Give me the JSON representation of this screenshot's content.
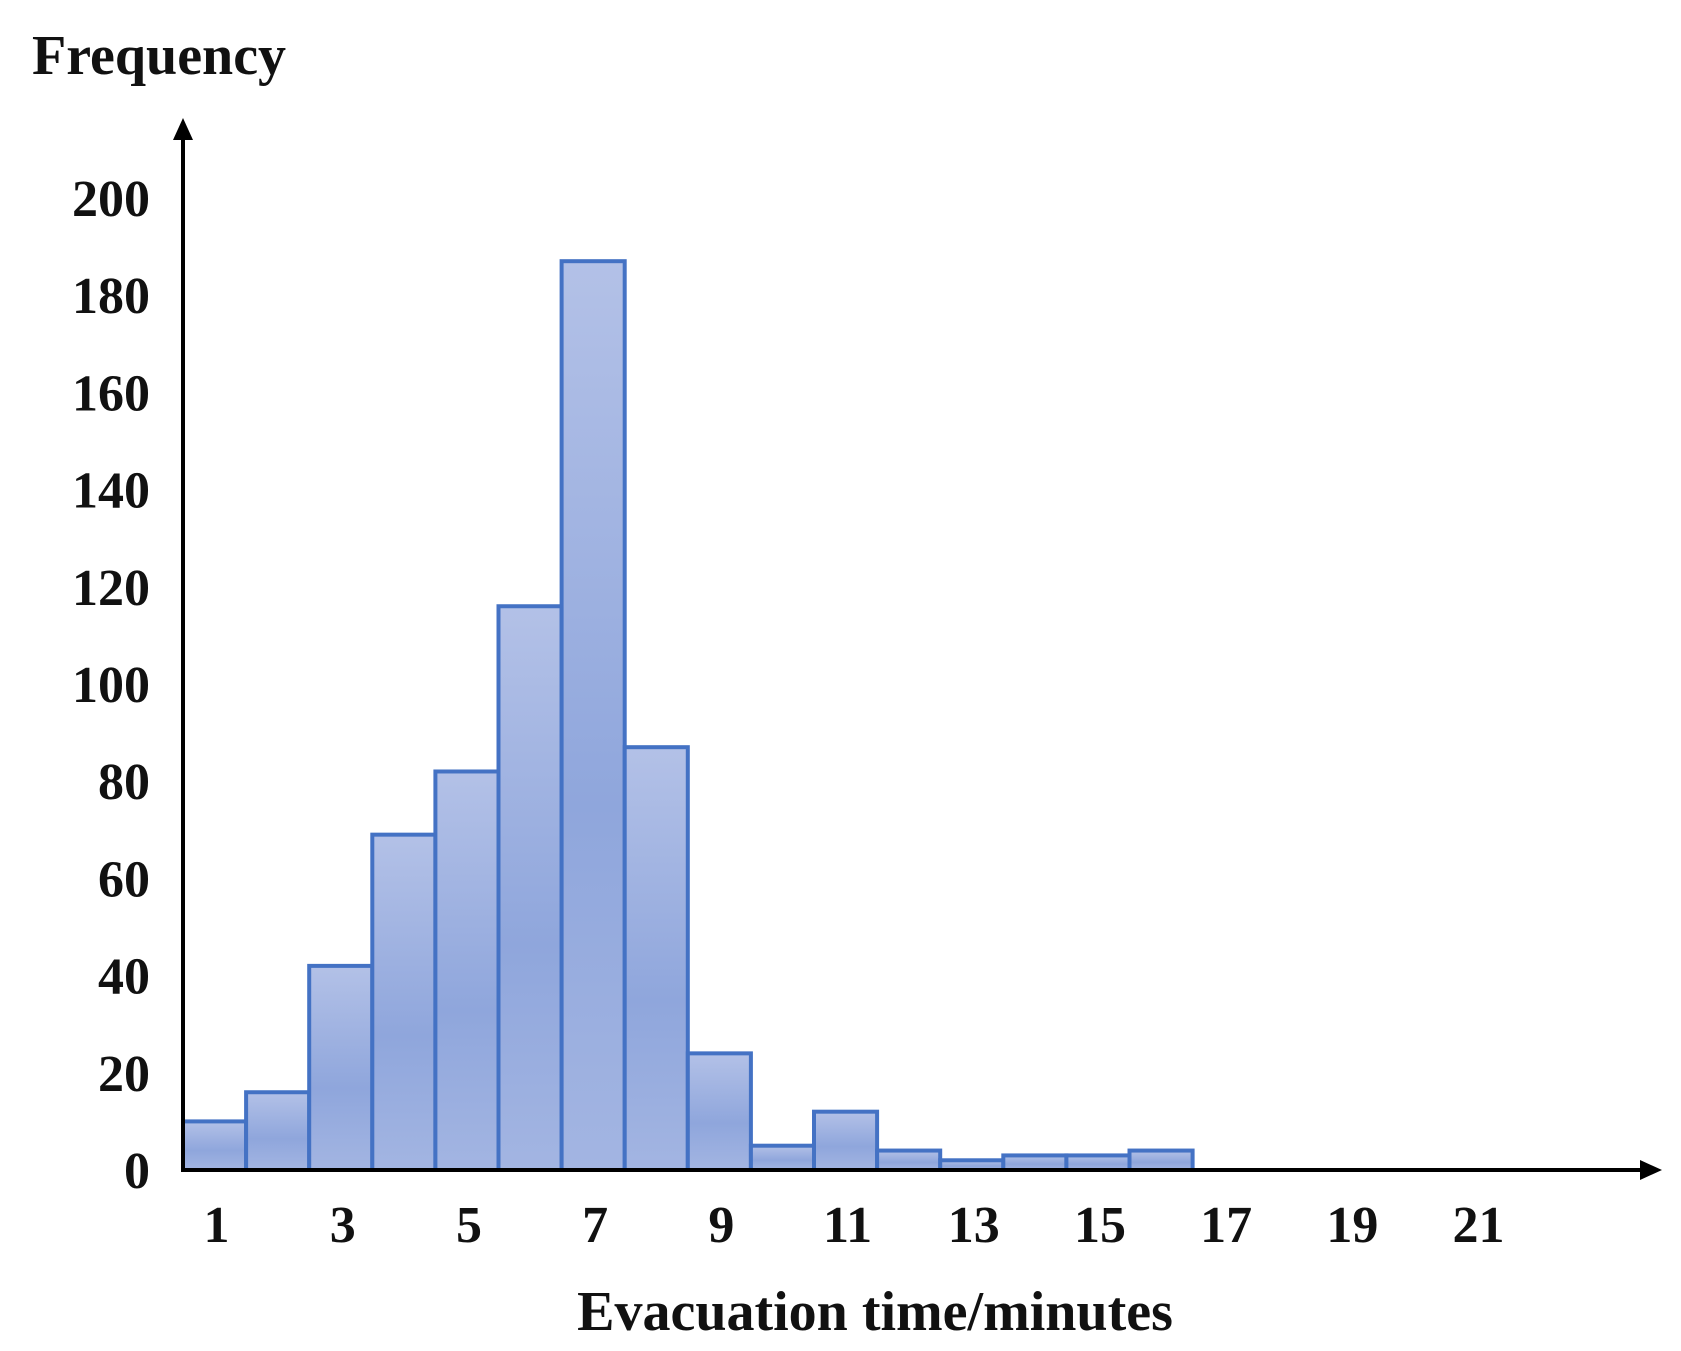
{
  "chart_data": {
    "type": "bar",
    "title": "",
    "xlabel": "Evacuation time/minutes",
    "ylabel": "Frequency",
    "ylim": [
      0,
      200
    ],
    "yticks": [
      "0",
      "20",
      "40",
      "60",
      "80",
      "100",
      "120",
      "140",
      "160",
      "180",
      "200"
    ],
    "xticks": [
      "1",
      "3",
      "5",
      "7",
      "9",
      "11",
      "13",
      "15",
      "17",
      "19",
      "21"
    ],
    "bins_start": 0.5,
    "bin_width": 1,
    "xlim": [
      0.5,
      22.5
    ],
    "values": [
      10,
      16,
      42,
      69,
      82,
      116,
      187,
      87,
      24,
      5,
      12,
      4,
      2,
      3,
      3,
      4
    ],
    "grid": false,
    "legend": "none",
    "colors": {
      "bar_fill_top": "#b3c1e7",
      "bar_fill_bottom": "#8aa2d9",
      "bar_stroke": "#4472c4",
      "axis": "#000000"
    }
  }
}
